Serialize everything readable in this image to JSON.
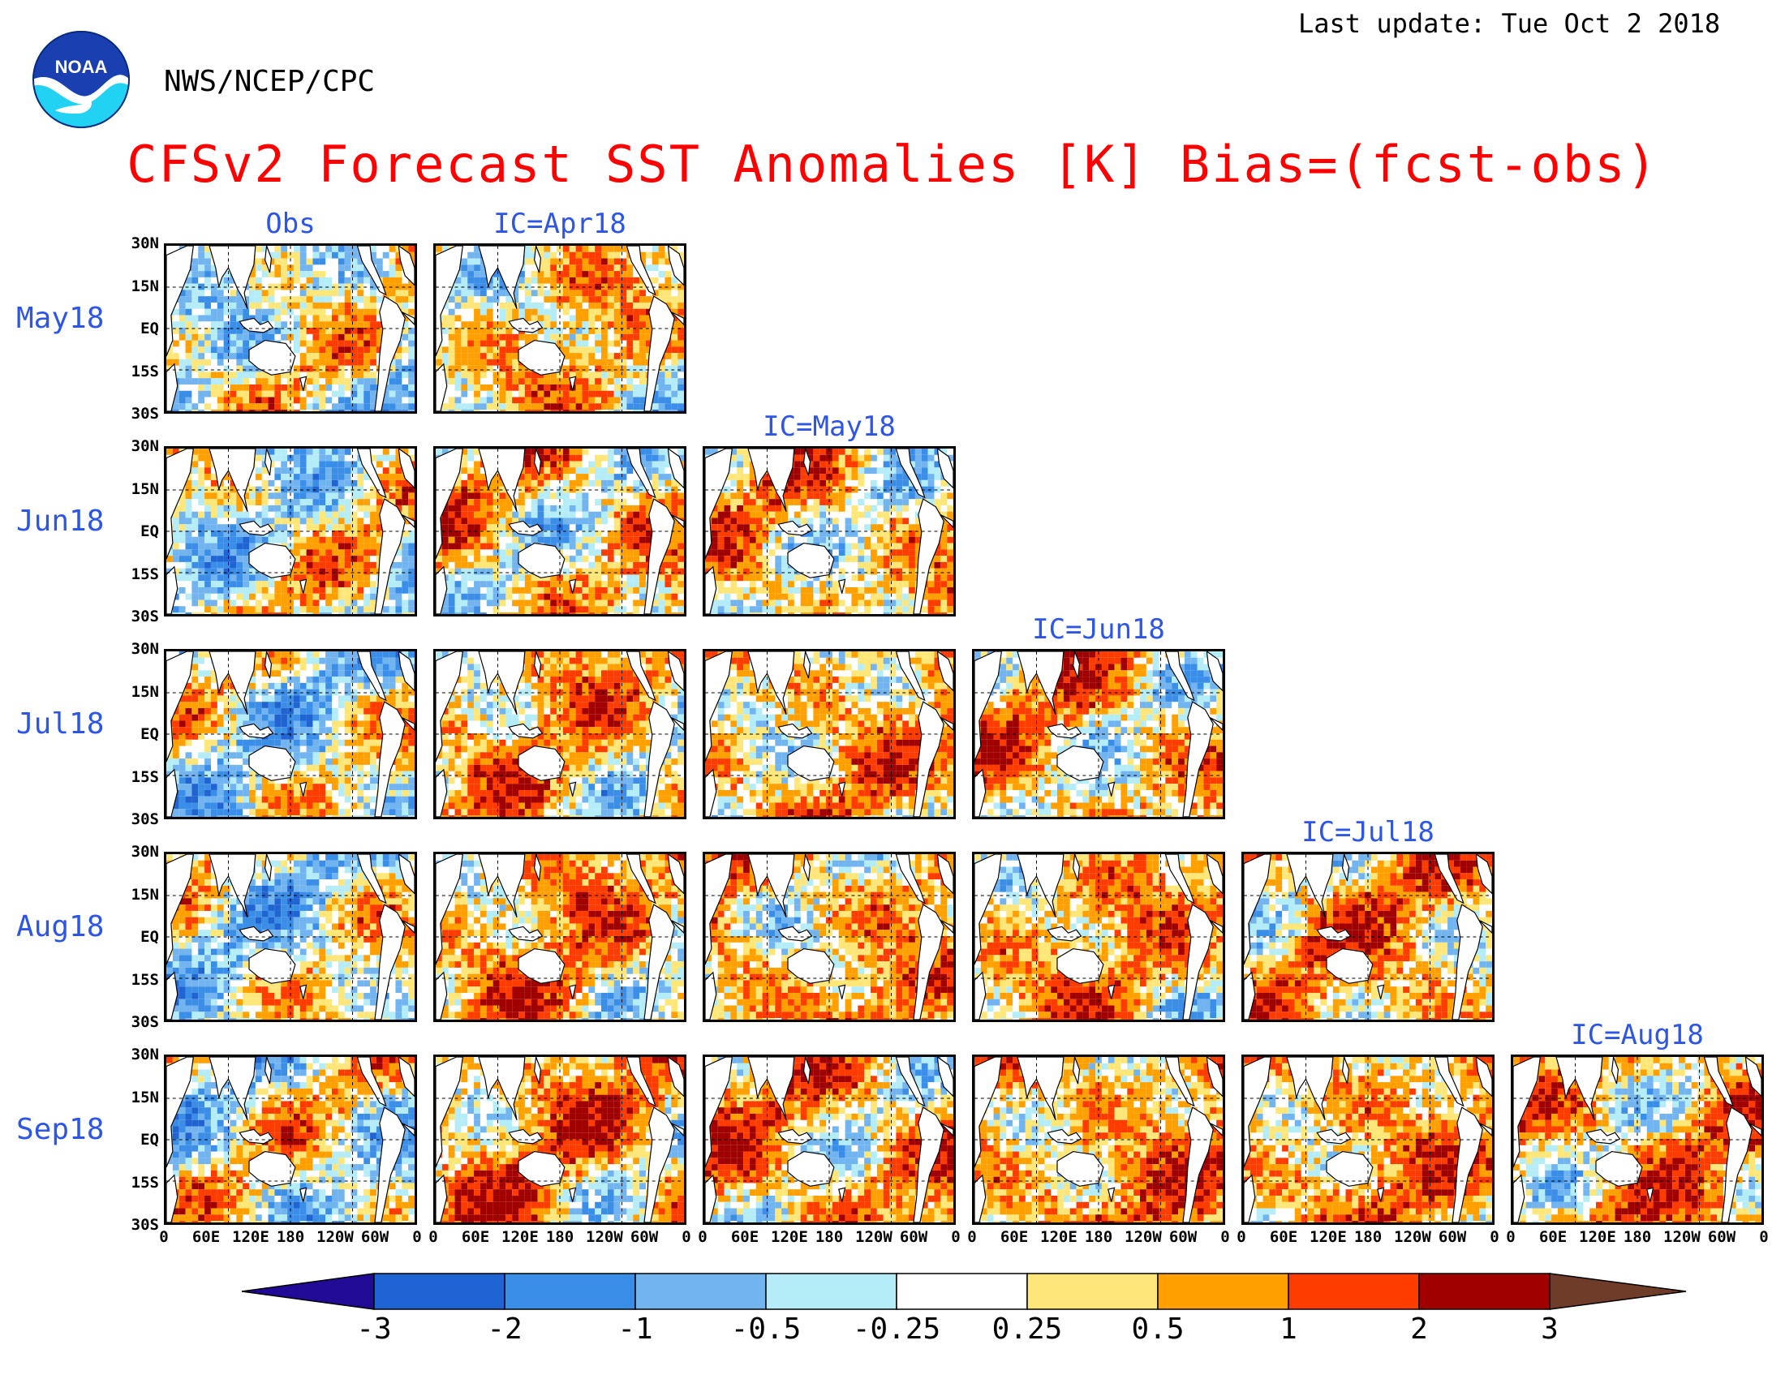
{
  "header": {
    "last_update": "Last update: Tue Oct 2 2018",
    "org": "NWS/NCEP/CPC",
    "logo_text": "NOAA",
    "title": "CFSv2 Forecast SST Anomalies [K] Bias=(fcst-obs)"
  },
  "columns": [
    "Obs",
    "IC=Apr18",
    "IC=May18",
    "IC=Jun18",
    "IC=Jul18",
    "IC=Aug18"
  ],
  "rows": [
    "May18",
    "Jun18",
    "Jul18",
    "Aug18",
    "Sep18"
  ],
  "lat_ticks": [
    "30N",
    "15N",
    "EQ",
    "15S",
    "30S"
  ],
  "lon_ticks": [
    "0",
    "60E",
    "120E",
    "180",
    "120W",
    "60W",
    "0"
  ],
  "colorbar": {
    "levels": [
      "-3",
      "-2",
      "-1",
      "-0.5",
      "-0.25",
      "0.25",
      "0.5",
      "1",
      "2",
      "3"
    ],
    "colors": [
      "#200a96",
      "#1f64d2",
      "#3b8ee8",
      "#72b4f0",
      "#b4ecf8",
      "#ffffff",
      "#ffe678",
      "#ffa000",
      "#ff3c00",
      "#a00000",
      "#6e3c28"
    ]
  }
}
